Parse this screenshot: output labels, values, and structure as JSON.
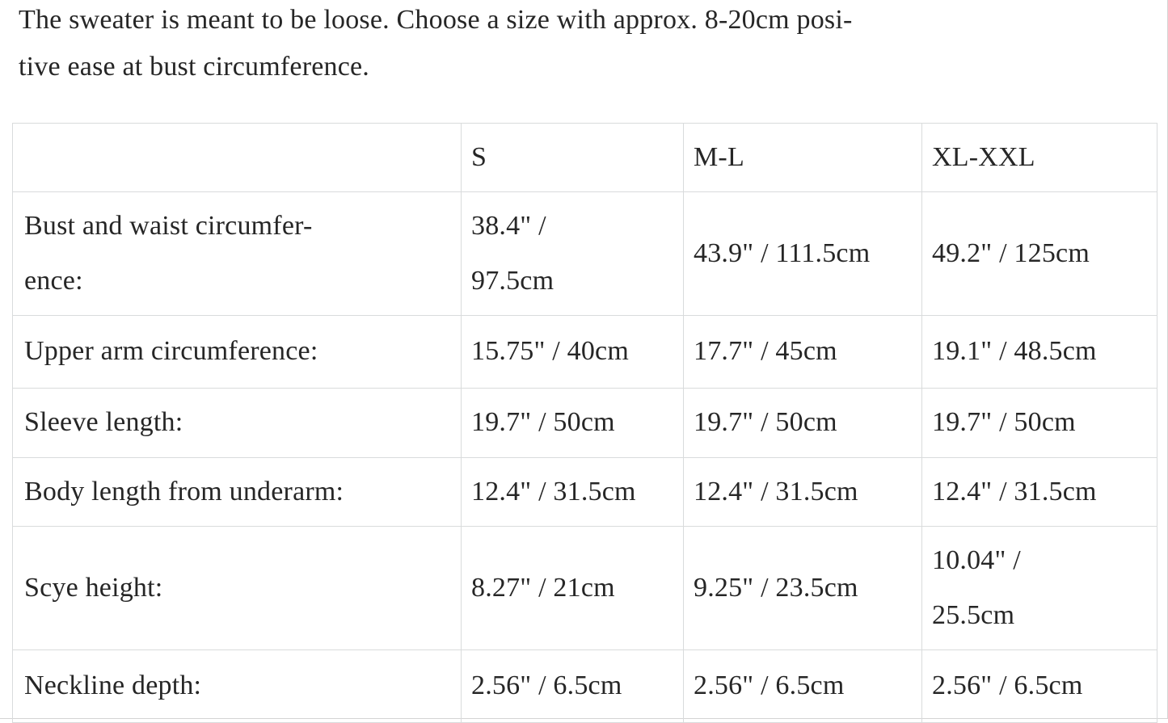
{
  "intro": "The sweater is meant to be loose. Choose a size with approx. 8-20cm posi-\ntive ease at bust circumference.",
  "table": {
    "columns": [
      "",
      "S",
      "M-L",
      "XL-XXL"
    ],
    "rows": [
      {
        "label": "Bust and waist circumfer-\nence:",
        "values": [
          "38.4\" /\n97.5cm",
          "43.9\" / 111.5cm",
          "49.2\" / 125cm"
        ]
      },
      {
        "label": "Upper arm circumference:",
        "values": [
          "15.75\" / 40cm",
          "17.7\" / 45cm",
          "19.1\" / 48.5cm"
        ]
      },
      {
        "label": "Sleeve length:",
        "values": [
          "19.7\" / 50cm",
          "19.7\" / 50cm",
          "19.7\" / 50cm"
        ]
      },
      {
        "label": "Body length from underarm:",
        "values": [
          "12.4\" / 31.5cm",
          "12.4\" / 31.5cm",
          "12.4\" / 31.5cm"
        ]
      },
      {
        "label": "Scye height:",
        "values": [
          "8.27\" / 21cm",
          "9.25\" / 23.5cm",
          "10.04\" /\n25.5cm"
        ]
      },
      {
        "label": "Neckline depth:",
        "values": [
          "2.56\" / 6.5cm",
          "2.56\" / 6.5cm",
          "2.56\" / 6.5cm"
        ]
      }
    ]
  },
  "colors": {
    "text": "#262626",
    "table_border": "#d9dbdc",
    "background": "#ffffff"
  }
}
